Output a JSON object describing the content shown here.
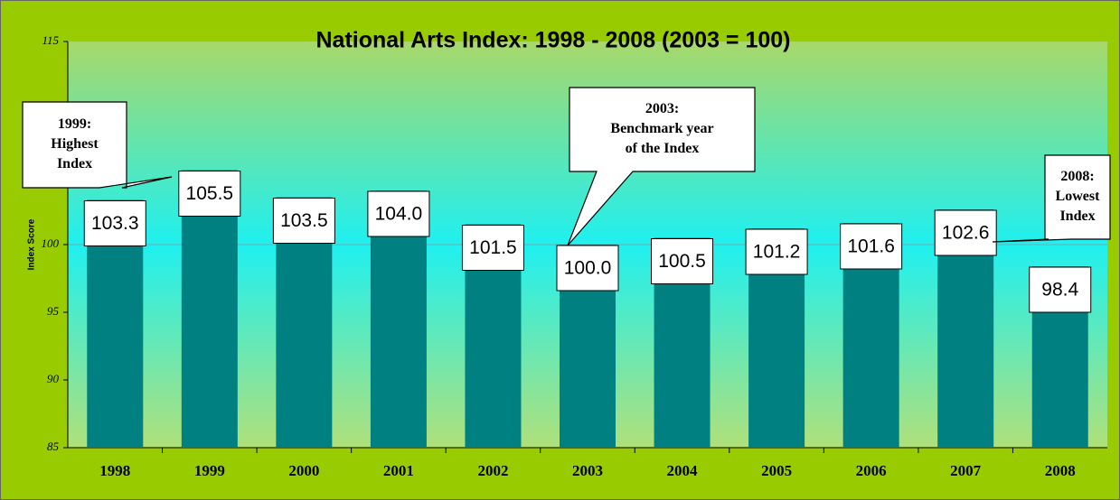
{
  "chart_data": {
    "type": "bar",
    "title": "National Arts Index: 1998 - 2008 (2003 = 100)",
    "y_label": "Index Score",
    "categories": [
      "1998",
      "1999",
      "2000",
      "2001",
      "2002",
      "2003",
      "2004",
      "2005",
      "2006",
      "2007",
      "2008"
    ],
    "values": [
      103.3,
      105.5,
      103.5,
      104.0,
      101.5,
      100.0,
      100.5,
      101.2,
      101.6,
      102.6,
      98.4
    ],
    "value_labels": [
      "103.3",
      "105.5",
      "103.5",
      "104.0",
      "101.5",
      "100.0",
      "100.5",
      "101.2",
      "101.6",
      "102.6",
      "98.4"
    ],
    "color": "#008080",
    "ylim": [
      85,
      115
    ],
    "yticks": [
      85,
      90,
      95,
      100,
      115
    ],
    "grid_values": [
      100
    ],
    "annotations": [
      {
        "lines": [
          "1999:",
          "Highest",
          "Index"
        ]
      },
      {
        "lines": [
          "2003:",
          "Benchmark year",
          "of the Index"
        ]
      },
      {
        "lines": [
          "2008:",
          "Lowest",
          "Index"
        ]
      }
    ]
  }
}
